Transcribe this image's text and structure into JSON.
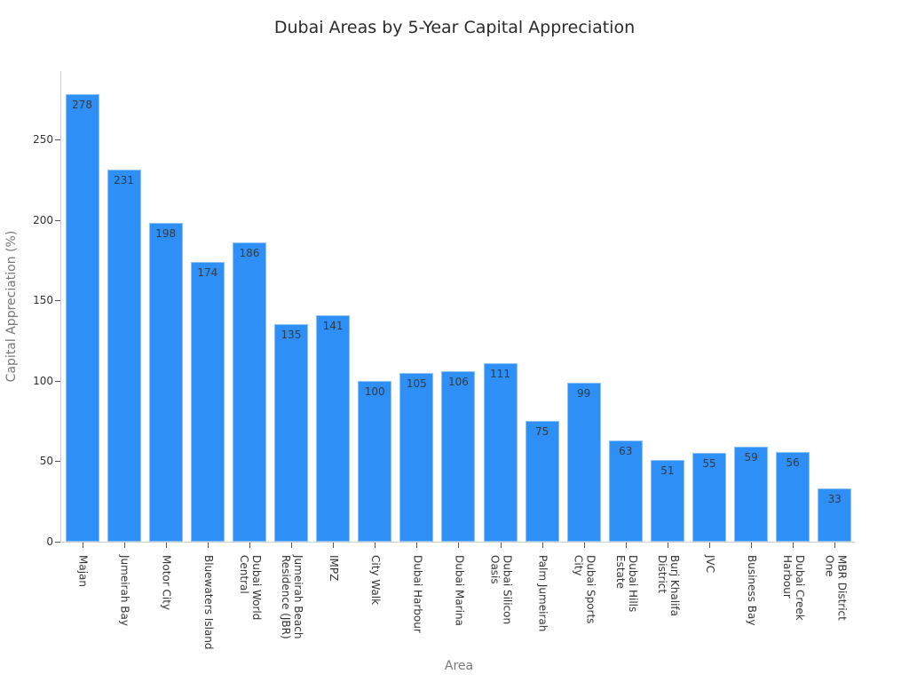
{
  "title": "Dubai Areas by 5-Year Capital Appreciation",
  "x_axis_title": "Area",
  "y_axis_title": "Capital Appreciation (%)",
  "colors": {
    "bar": "#2e90f7",
    "bar_border": "#8ec4f5"
  },
  "chart_data": {
    "type": "bar",
    "title": "Dubai Areas by 5-Year Capital Appreciation",
    "xlabel": "Area",
    "ylabel": "Capital Appreciation (%)",
    "categories": [
      "Majan",
      "Jumeirah Bay",
      "Motor City",
      "Bluewaters Island",
      "Dubai World Central",
      "Jumeirah Beach Residence (JBR)",
      "IMPZ",
      "City Walk",
      "Dubai Harbour",
      "Dubai Marina",
      "Dubai Silicon Oasis",
      "Palm Jumeirah",
      "Dubai Sports City",
      "Dubai Hills Estate",
      "Burj Khalifa District",
      "JVC",
      "Business Bay",
      "Dubai Creek Harbour",
      "MBR District One"
    ],
    "tick_labels": [
      "Majan",
      "Jumeirah Bay",
      "Motor City",
      "Bluewaters Island",
      "Dubai World\nCentral",
      "Jumeirah Beach\nResidence (JBR)",
      "IMPZ",
      "City Walk",
      "Dubai Harbour",
      "Dubai Marina",
      "Dubai Silicon\nOasis",
      "Palm Jumeirah",
      "Dubai Sports\nCity",
      "Dubai Hills\nEstate",
      "Burj Khalifa\nDistrict",
      "JVC",
      "Business Bay",
      "Dubai Creek\nHarbour",
      "MBR District\nOne"
    ],
    "values": [
      278,
      231,
      198,
      174,
      186,
      135,
      141,
      100,
      105,
      106,
      111,
      75,
      99,
      63,
      51,
      55,
      59,
      56,
      33
    ],
    "yticks": [
      0,
      50,
      100,
      150,
      200,
      250
    ],
    "ylim": [
      0,
      292.5
    ],
    "grid": false,
    "legend": null,
    "data_labels": true
  }
}
